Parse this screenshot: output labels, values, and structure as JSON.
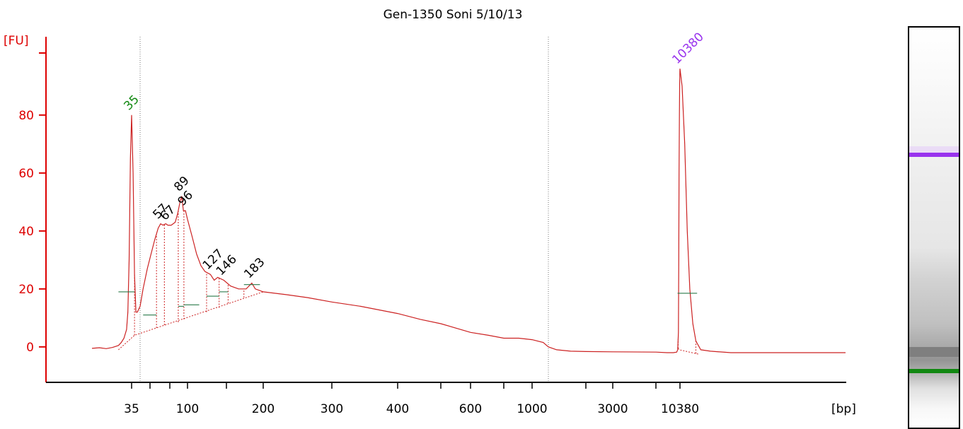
{
  "colors": {
    "trace": "#cc2222",
    "axis": "#dd0000",
    "marker_lower": "#118811",
    "marker_upper": "#9933ee",
    "baseline": "#2a7a4a",
    "text": "#000000"
  },
  "chart_data": {
    "type": "line",
    "title": "Gen-1350 Soni 5/10/13",
    "ylabel": "[FU]",
    "xlabel": "[bp]",
    "ylim": [
      -12,
      108
    ],
    "y_ticks": [
      0,
      20,
      40,
      60,
      80
    ],
    "x_ticks": [
      {
        "label": "35",
        "x": 35
      },
      {
        "label": "100",
        "x": 100
      },
      {
        "label": "200",
        "x": 200
      },
      {
        "label": "300",
        "x": 300
      },
      {
        "label": "400",
        "x": 400
      },
      {
        "label": "600",
        "x": 600
      },
      {
        "label": "1000",
        "x": 1000
      },
      {
        "label": "3000",
        "x": 3000
      },
      {
        "label": "10380",
        "x": 10380
      }
    ],
    "x_tick_marks": [
      35,
      100,
      200,
      300,
      400,
      600,
      1000,
      3000,
      10380
    ],
    "x_minor_marks": [
      45,
      70,
      150,
      500,
      800,
      2000,
      5000
    ],
    "region_markers": [
      38,
      1150
    ],
    "series": [
      {
        "points": [
          [
            22,
            -0.5
          ],
          [
            24,
            -0.3
          ],
          [
            26,
            -0.6
          ],
          [
            28,
            -0.2
          ],
          [
            30,
            0.5
          ],
          [
            31,
            1.5
          ],
          [
            32,
            3
          ],
          [
            33,
            6
          ],
          [
            33.5,
            12
          ],
          [
            34,
            30
          ],
          [
            34.5,
            65
          ],
          [
            35,
            80
          ],
          [
            35.5,
            60
          ],
          [
            36,
            25
          ],
          [
            36.5,
            12
          ],
          [
            37,
            12
          ],
          [
            38,
            14
          ],
          [
            40,
            20
          ],
          [
            43,
            27
          ],
          [
            46,
            32
          ],
          [
            50,
            37
          ],
          [
            54,
            41
          ],
          [
            57,
            42.5
          ],
          [
            60,
            42
          ],
          [
            64,
            42.5
          ],
          [
            67,
            42
          ],
          [
            72,
            42
          ],
          [
            78,
            43
          ],
          [
            82,
            46
          ],
          [
            86,
            50
          ],
          [
            89,
            52
          ],
          [
            92,
            47
          ],
          [
            96,
            47
          ],
          [
            100,
            44
          ],
          [
            105,
            38
          ],
          [
            110,
            32
          ],
          [
            115,
            28
          ],
          [
            120,
            26
          ],
          [
            127,
            25
          ],
          [
            132,
            23
          ],
          [
            137,
            24
          ],
          [
            146,
            23
          ],
          [
            155,
            21
          ],
          [
            165,
            20
          ],
          [
            175,
            20
          ],
          [
            183,
            22
          ],
          [
            188,
            20
          ],
          [
            200,
            19
          ],
          [
            230,
            18
          ],
          [
            260,
            17
          ],
          [
            300,
            15.5
          ],
          [
            340,
            14
          ],
          [
            400,
            11.5
          ],
          [
            450,
            9.5
          ],
          [
            500,
            8
          ],
          [
            600,
            5
          ],
          [
            700,
            4
          ],
          [
            800,
            3
          ],
          [
            900,
            3
          ],
          [
            1000,
            2.5
          ],
          [
            1100,
            1.5
          ],
          [
            1150,
            0
          ],
          [
            1300,
            -1
          ],
          [
            1600,
            -1.5
          ],
          [
            2000,
            -1.6
          ],
          [
            3000,
            -1.7
          ],
          [
            5000,
            -1.8
          ],
          [
            7000,
            -2
          ],
          [
            8500,
            -2
          ],
          [
            9400,
            -1.8
          ],
          [
            9700,
            -1
          ],
          [
            9900,
            5
          ],
          [
            10000,
            30
          ],
          [
            10100,
            60
          ],
          [
            10200,
            80
          ],
          [
            10300,
            92
          ],
          [
            10380,
            96
          ],
          [
            10460,
            90
          ],
          [
            10560,
            70
          ],
          [
            10660,
            40
          ],
          [
            10760,
            20
          ],
          [
            10880,
            8
          ],
          [
            11000,
            2
          ],
          [
            11200,
            -1
          ],
          [
            11600,
            -1.5
          ],
          [
            12500,
            -2
          ],
          [
            14000,
            -2
          ],
          [
            16000,
            -2
          ],
          [
            19000,
            -2
          ]
        ]
      }
    ],
    "peak_labels": [
      {
        "label": "35",
        "x": 35,
        "y": 80,
        "kind": "lower-marker"
      },
      {
        "label": "57",
        "x": 57,
        "y": 42.5,
        "kind": "peak"
      },
      {
        "label": "67",
        "x": 67,
        "y": 42,
        "kind": "peak"
      },
      {
        "label": "89",
        "x": 89,
        "y": 52,
        "kind": "peak"
      },
      {
        "label": "96",
        "x": 96,
        "y": 47,
        "kind": "peak"
      },
      {
        "label": "127",
        "x": 127,
        "y": 25,
        "kind": "peak"
      },
      {
        "label": "146",
        "x": 146,
        "y": 23,
        "kind": "peak"
      },
      {
        "label": "183",
        "x": 183,
        "y": 22,
        "kind": "peak"
      },
      {
        "label": "10380",
        "x": 10380,
        "y": 96,
        "kind": "upper-marker"
      }
    ],
    "baseline_segments": [
      {
        "x1": 30,
        "x2": 36,
        "y": 19
      },
      {
        "x1": 40,
        "x2": 52,
        "y": 11
      },
      {
        "x1": 83,
        "x2": 93,
        "y": 14
      },
      {
        "x1": 93,
        "x2": 113,
        "y": 14.5
      },
      {
        "x1": 122,
        "x2": 139,
        "y": 17.5
      },
      {
        "x1": 139,
        "x2": 152,
        "y": 19
      },
      {
        "x1": 172,
        "x2": 195,
        "y": 21.5
      },
      {
        "x1": 9650,
        "x2": 11050,
        "y": 18.5
      }
    ],
    "peak_dividers": [
      {
        "x": 36,
        "y": 4
      },
      {
        "x": 52,
        "y": 6.5
      },
      {
        "x": 62,
        "y": 7.5
      },
      {
        "x": 83,
        "y": 8.5
      },
      {
        "x": 93,
        "y": 9.5
      },
      {
        "x": 122,
        "y": 12
      },
      {
        "x": 139,
        "y": 13.5
      },
      {
        "x": 152,
        "y": 15
      },
      {
        "x": 172,
        "y": 17
      }
    ],
    "gel_bands": [
      {
        "name": "upper-marker",
        "color": "#9933ee",
        "x": 10380
      },
      {
        "name": "lower-marker",
        "color": "#118811",
        "x": 35
      }
    ]
  }
}
